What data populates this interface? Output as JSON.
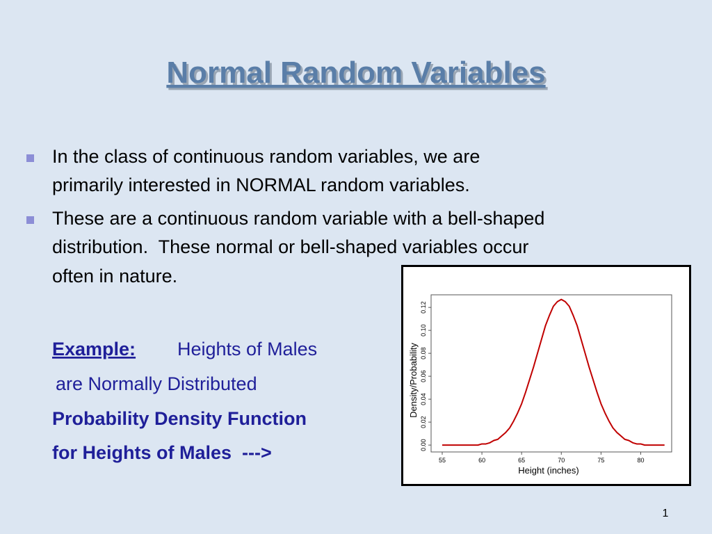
{
  "title": "Normal Random Variables",
  "bullets": [
    [
      "In the class of continuous random variables, we are",
      "primarily interested in NORMAL random variables."
    ],
    [
      "These are a continuous random variable with a bell-shaped",
      "distribution.  These normal or bell-shaped variables occur",
      "often in nature."
    ]
  ],
  "example": {
    "label": "Example:",
    "text": "Heights of Males",
    "line2": "are Normally Distributed",
    "line3": "Probability Density Function",
    "line4": "for Heights of Males  --->"
  },
  "page_number": "1",
  "chart_data": {
    "type": "line",
    "x_label": "Height (inches)",
    "y_label": "Density/Probability",
    "x": [
      55,
      55.5,
      56,
      56.5,
      57,
      57.5,
      58,
      58.5,
      59,
      59.5,
      60,
      60.5,
      61,
      61.5,
      62,
      62.5,
      63,
      63.5,
      64,
      64.5,
      65,
      65.5,
      66,
      66.5,
      67,
      67.5,
      68,
      68.5,
      69,
      69.5,
      70,
      70.5,
      71,
      71.5,
      72,
      72.5,
      73,
      73.5,
      74,
      74.5,
      75,
      75.5,
      76,
      76.5,
      77,
      77.5,
      78,
      78.5,
      79,
      79.5,
      80,
      80.5,
      81,
      81.5,
      82,
      82.5,
      83
    ],
    "values": [
      0,
      0,
      0,
      0,
      0,
      0,
      0,
      0,
      0,
      0,
      0.001,
      0.001,
      0.002,
      0.004,
      0.005,
      0.008,
      0.011,
      0.015,
      0.021,
      0.028,
      0.036,
      0.046,
      0.057,
      0.068,
      0.08,
      0.092,
      0.104,
      0.113,
      0.121,
      0.125,
      0.127,
      0.125,
      0.121,
      0.113,
      0.104,
      0.092,
      0.08,
      0.068,
      0.057,
      0.046,
      0.036,
      0.028,
      0.021,
      0.015,
      0.011,
      0.008,
      0.005,
      0.004,
      0.002,
      0.001,
      0.001,
      0,
      0,
      0,
      0,
      0,
      0
    ],
    "color": "#c00000",
    "xlim": [
      53.6,
      83.9
    ],
    "ylim": [
      -0.006,
      0.131
    ],
    "xticks": [
      55,
      60,
      65,
      70,
      75,
      80
    ],
    "yticks": [
      {
        "value": 0,
        "label": "0.00"
      },
      {
        "value": 0.02,
        "label": "0.02"
      },
      {
        "value": 0.04,
        "label": "0.04"
      },
      {
        "value": 0.06,
        "label": "0.06"
      },
      {
        "value": 0.08,
        "label": "0.08"
      },
      {
        "value": 0.1,
        "label": "0.10"
      },
      {
        "value": 0.12,
        "label": "0.12"
      }
    ]
  }
}
